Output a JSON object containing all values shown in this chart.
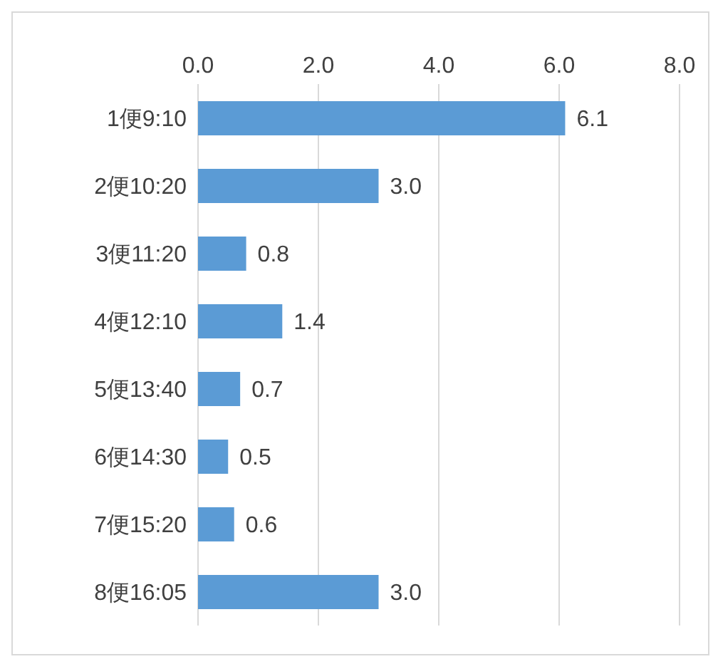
{
  "chart_data": {
    "type": "bar",
    "orientation": "horizontal",
    "categories": [
      "1便9:10",
      "2便10:20",
      "3便11:20",
      "4便12:10",
      "5便13:40",
      "6便14:30",
      "7便15:20",
      "8便16:05"
    ],
    "values": [
      6.1,
      3.0,
      0.8,
      1.4,
      0.7,
      0.5,
      0.6,
      3.0
    ],
    "value_labels": [
      "6.1",
      "3.0",
      "0.8",
      "1.4",
      "0.7",
      "0.5",
      "0.6",
      "3.0"
    ],
    "color": "#5b9bd5",
    "xlim": [
      0,
      8
    ],
    "xticks": [
      {
        "value": 0,
        "label": "0.0"
      },
      {
        "value": 2,
        "label": "2.0"
      },
      {
        "value": 4,
        "label": "4.0"
      },
      {
        "value": 6,
        "label": "6.0"
      },
      {
        "value": 8,
        "label": "8.0"
      }
    ],
    "grid": "x",
    "legend": false
  }
}
